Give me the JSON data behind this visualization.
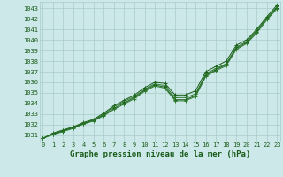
{
  "x": [
    0,
    1,
    2,
    3,
    4,
    5,
    6,
    7,
    8,
    9,
    10,
    11,
    12,
    13,
    14,
    15,
    16,
    17,
    18,
    19,
    20,
    21,
    22,
    23
  ],
  "line1": [
    1030.7,
    1031.2,
    1031.5,
    1031.8,
    1032.2,
    1032.5,
    1033.1,
    1033.8,
    1034.3,
    1034.8,
    1035.5,
    1036.0,
    1035.9,
    1034.8,
    1034.8,
    1035.2,
    1037.0,
    1037.5,
    1038.0,
    1039.5,
    1040.0,
    1041.0,
    1042.2,
    1043.3
  ],
  "line2": [
    1030.7,
    1031.15,
    1031.45,
    1031.75,
    1032.15,
    1032.45,
    1033.0,
    1033.7,
    1034.2,
    1034.65,
    1035.35,
    1035.85,
    1035.7,
    1034.55,
    1034.55,
    1034.9,
    1036.8,
    1037.3,
    1037.75,
    1039.3,
    1039.85,
    1040.9,
    1042.1,
    1043.15
  ],
  "line3": [
    1030.7,
    1031.1,
    1031.4,
    1031.7,
    1032.1,
    1032.4,
    1032.9,
    1033.55,
    1034.05,
    1034.55,
    1035.25,
    1035.75,
    1035.55,
    1034.35,
    1034.35,
    1034.75,
    1036.65,
    1037.2,
    1037.65,
    1039.2,
    1039.75,
    1040.75,
    1042.0,
    1043.05
  ],
  "line4": [
    1030.7,
    1031.05,
    1031.35,
    1031.65,
    1032.05,
    1032.35,
    1032.85,
    1033.45,
    1033.95,
    1034.45,
    1035.15,
    1035.65,
    1035.45,
    1034.25,
    1034.25,
    1034.65,
    1036.55,
    1037.1,
    1037.55,
    1039.1,
    1039.65,
    1040.65,
    1041.9,
    1042.95
  ],
  "bg_color": "#cce8e8",
  "grid_color": "#aacccc",
  "line_color": "#1a5c1a",
  "ylabel_values": [
    1031,
    1032,
    1033,
    1034,
    1035,
    1036,
    1037,
    1038,
    1039,
    1040,
    1041,
    1042,
    1043
  ],
  "ylim": [
    1030.4,
    1043.6
  ],
  "xlim": [
    -0.3,
    23.3
  ],
  "title": "Graphe pression niveau de la mer (hPa)",
  "marker": "+",
  "marker_size": 3.0,
  "title_fontsize": 6.5,
  "tick_fontsize": 5.0
}
